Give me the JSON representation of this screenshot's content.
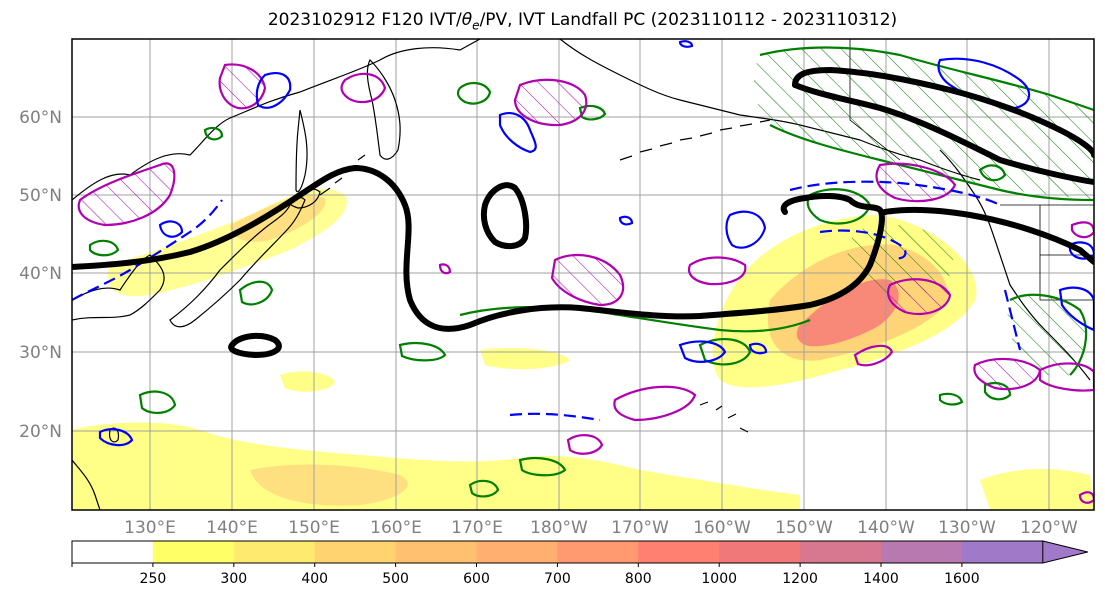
{
  "title": {
    "prefix": "2023102912 F120 IVT/",
    "theta": "θ",
    "sub": "e",
    "suffix": "/PV, IVT Landfall PC (2023110112 - 2023110312)"
  },
  "lat_labels": [
    "60°N",
    "50°N",
    "40°N",
    "30°N",
    "20°N"
  ],
  "lon_labels": [
    "130°E",
    "140°E",
    "150°E",
    "160°E",
    "170°E",
    "180°W",
    "170°W",
    "160°W",
    "150°W",
    "140°W",
    "130°W",
    "120°W"
  ],
  "colorbar": {
    "ticks": [
      "250",
      "300",
      "400",
      "500",
      "600",
      "700",
      "800",
      "1000",
      "1200",
      "1400",
      "1600"
    ],
    "colors": [
      "#ffffff",
      "#ffff66",
      "#ffea70",
      "#ffd470",
      "#ffc070",
      "#ffb070",
      "#ff9a70",
      "#ff8070",
      "#f07878",
      "#d87890",
      "#b878b0",
      "#a07ac8"
    ]
  },
  "colors": {
    "pc_line": "#000000",
    "theta_e": "#008000",
    "pv_positive": "#b000b0",
    "pv_negative": "#0000ff",
    "coast": "#000000"
  }
}
